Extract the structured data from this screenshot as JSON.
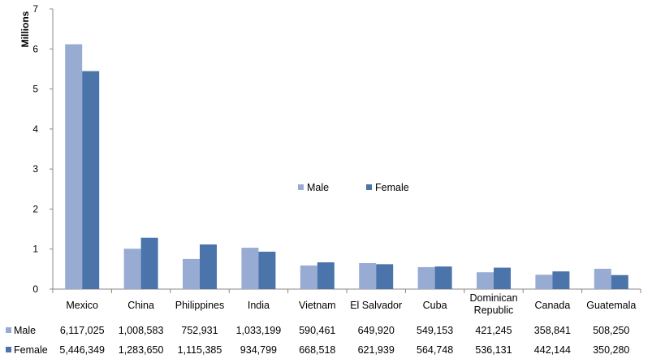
{
  "chart_data": {
    "type": "bar",
    "ylabel": "Millions",
    "ylim": [
      0,
      7
    ],
    "yticks": [
      0,
      1,
      2,
      3,
      4,
      5,
      6,
      7
    ],
    "categories": [
      "Mexico",
      "China",
      "Philippines",
      "India",
      "Vietnam",
      "El Salvador",
      "Cuba",
      "Dominican Republic",
      "Canada",
      "Guatemala"
    ],
    "category_lines": [
      [
        "Mexico"
      ],
      [
        "China"
      ],
      [
        "Philippines"
      ],
      [
        "India"
      ],
      [
        "Vietnam"
      ],
      [
        "El Salvador"
      ],
      [
        "Cuba"
      ],
      [
        "Dominican",
        "Republic"
      ],
      [
        "Canada"
      ],
      [
        "Guatemala"
      ]
    ],
    "series": [
      {
        "name": "Male",
        "color": "#98abd3",
        "values": [
          6117025,
          1008583,
          752931,
          1033199,
          590461,
          649920,
          549153,
          421245,
          358841,
          508250
        ],
        "labels": [
          "6,117,025",
          "1,008,583",
          "752,931",
          "1,033,199",
          "590,461",
          "649,920",
          "549,153",
          "421,245",
          "358,841",
          "508,250"
        ]
      },
      {
        "name": "Female",
        "color": "#4a74aa",
        "values": [
          5446349,
          1283650,
          1115385,
          934799,
          668518,
          621939,
          564748,
          536131,
          442144,
          350280
        ],
        "labels": [
          "5,446,349",
          "1,283,650",
          "1,115,385",
          "934,799",
          "668,518",
          "621,939",
          "564,748",
          "536,131",
          "442,144",
          "350,280"
        ]
      }
    ],
    "value_unit_divisor": 1000000,
    "legend_position": "center",
    "grid": false,
    "data_table": true
  }
}
